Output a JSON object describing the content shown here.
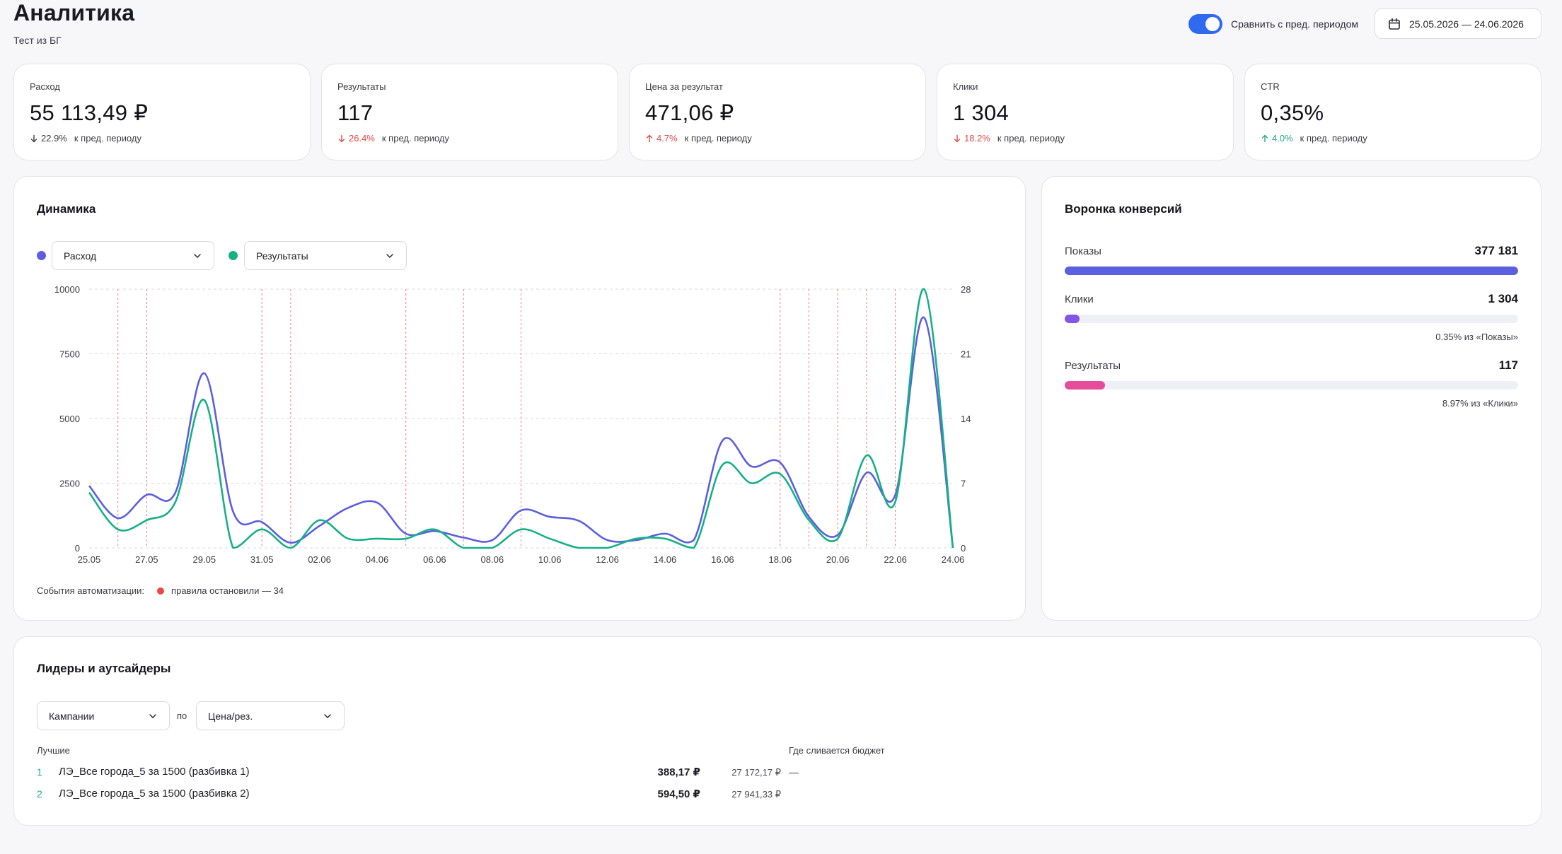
{
  "header": {
    "title": "Аналитика",
    "subtitle": "Тест из БГ",
    "compare_label": "Сравнить с пред. периодом",
    "compare_enabled": true,
    "date_range": "25.05.2026 — 24.06.2026"
  },
  "kpis": [
    {
      "label": "Расход",
      "value": "55 113,49 ₽",
      "delta": "22.9%",
      "delta_suffix": "к пред. периоду",
      "direction": "down",
      "tone": "neutral"
    },
    {
      "label": "Результаты",
      "value": "117",
      "delta": "26.4%",
      "delta_suffix": "к пред. периоду",
      "direction": "down",
      "tone": "bad"
    },
    {
      "label": "Цена за результат",
      "value": "471,06 ₽",
      "delta": "4.7%",
      "delta_suffix": "к пред. периоду",
      "direction": "up",
      "tone": "bad"
    },
    {
      "label": "Клики",
      "value": "1 304",
      "delta": "18.2%",
      "delta_suffix": "к пред. периоду",
      "direction": "down",
      "tone": "bad"
    },
    {
      "label": "CTR",
      "value": "0,35%",
      "delta": "4.0%",
      "delta_suffix": "к пред. периоду",
      "direction": "up",
      "tone": "good"
    }
  ],
  "dynamics": {
    "title": "Динамика",
    "metric_left": "Расход",
    "metric_right": "Результаты",
    "automation_label": "События автоматизации:",
    "automation_legend": "правила остановили — 34"
  },
  "chart_data": {
    "type": "line",
    "x": [
      "25.05",
      "26.05",
      "27.05",
      "28.05",
      "29.05",
      "30.05",
      "31.05",
      "01.06",
      "02.06",
      "03.06",
      "04.06",
      "05.06",
      "06.06",
      "07.06",
      "08.06",
      "09.06",
      "10.06",
      "11.06",
      "12.06",
      "13.06",
      "14.06",
      "15.06",
      "16.06",
      "17.06",
      "18.06",
      "19.06",
      "20.06",
      "21.06",
      "22.06",
      "23.06",
      "24.06"
    ],
    "x_tick_labels": [
      "25.05",
      "27.05",
      "29.05",
      "31.05",
      "02.06",
      "04.06",
      "06.06",
      "08.06",
      "10.06",
      "12.06",
      "14.06",
      "16.06",
      "18.06",
      "20.06",
      "22.06",
      "24.06"
    ],
    "series": [
      {
        "name": "Расход",
        "axis": "left",
        "color": "#5b5fe0",
        "values": [
          2400,
          1150,
          2050,
          2150,
          6750,
          1400,
          1000,
          200,
          850,
          1550,
          1750,
          550,
          650,
          400,
          300,
          1450,
          1200,
          1050,
          300,
          300,
          550,
          300,
          4150,
          3150,
          3300,
          1200,
          500,
          2900,
          2050,
          8900,
          0
        ]
      },
      {
        "name": "Результаты",
        "axis": "right",
        "color": "#16b087",
        "values": [
          6,
          2,
          3,
          5,
          16,
          0,
          2,
          0,
          3,
          1,
          1,
          1,
          2,
          0,
          0,
          2,
          1,
          0,
          0,
          1,
          1,
          0,
          9,
          7,
          8,
          3,
          1,
          10,
          5,
          28,
          0
        ]
      }
    ],
    "y_left": {
      "range": [
        0,
        10000
      ],
      "ticks": [
        0,
        2500,
        5000,
        7500,
        10000
      ]
    },
    "y_right": {
      "range": [
        0,
        28
      ],
      "ticks": [
        0,
        7,
        14,
        21,
        28
      ]
    },
    "event_markers_x": [
      "26.05",
      "27.05",
      "31.05",
      "01.06",
      "05.06",
      "07.06",
      "09.06",
      "18.06",
      "19.06",
      "20.06",
      "21.06",
      "22.06"
    ],
    "grid": "horizontal dashed"
  },
  "funnel": {
    "title": "Воронка конверсий",
    "stages": [
      {
        "name": "Показы",
        "value": "377 181",
        "fill": 1.0,
        "color": "#5b5fe0",
        "note": ""
      },
      {
        "name": "Клики",
        "value": "1 304",
        "fill": 0.0035,
        "color": "#8256e6",
        "note": "0.35% из «Показы»"
      },
      {
        "name": "Результаты",
        "value": "117",
        "fill": 0.0897,
        "color": "#e54d9b",
        "note": "8.97% из «Клики»"
      }
    ]
  },
  "leaders": {
    "title": "Лидеры и аутсайдеры",
    "group_by": "Кампании",
    "by_label": "по",
    "metric": "Цена/рез.",
    "best_label": "Лучшие",
    "waste_label": "Где сливается бюджет",
    "waste_value": "—",
    "rows": [
      {
        "rank": "1",
        "name": "ЛЭ_Все города_5 за 1500 (разбивка 1)",
        "metric": "388,17 ₽",
        "spend": "27 172,17 ₽"
      },
      {
        "rank": "2",
        "name": "ЛЭ_Все города_5 за 1500 (разбивка 2)",
        "metric": "594,50 ₽",
        "spend": "27 941,33 ₽"
      }
    ]
  }
}
